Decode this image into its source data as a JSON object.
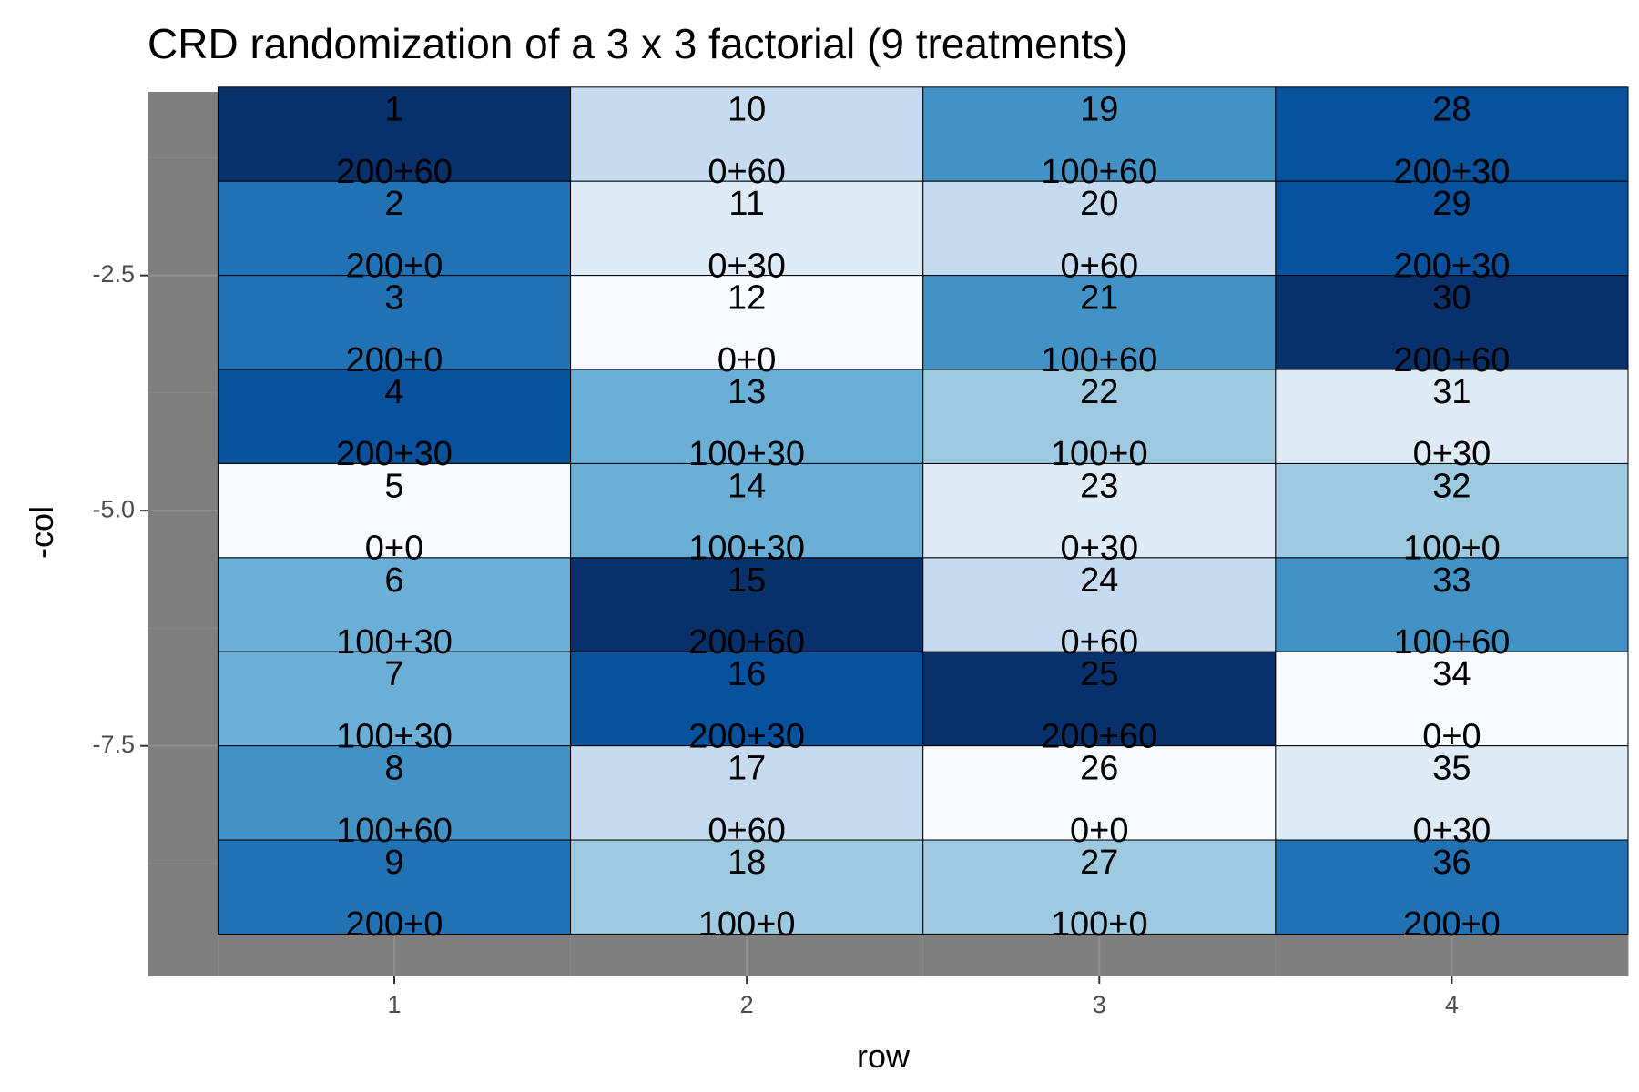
{
  "chart_data": {
    "type": "heatmap",
    "title": "CRD randomization of a 3 x 3 factorial (9 treatments)",
    "xlabel": "row",
    "ylabel": "-col",
    "x_ticks": [
      "1",
      "2",
      "3",
      "4"
    ],
    "y_ticks": [
      -2.5,
      -5.0,
      -7.5
    ],
    "y_tick_labels": [
      "-2.5",
      "-5.0",
      "-7.5"
    ],
    "x_range": [
      0.3,
      4.5
    ],
    "y_range": [
      -9.95,
      -0.55
    ],
    "grid": true,
    "panel_background": "#7f7f7f",
    "treatment_colors": {
      "0+0": "#f7fbff",
      "0+30": "#deebf7",
      "0+60": "#c6dbef",
      "100+0": "#9ecae1",
      "100+30": "#6baed6",
      "100+60": "#4292c6",
      "200+0": "#2171b5",
      "200+30": "#08519c",
      "200+60": "#08306b"
    },
    "cells": [
      {
        "row": 1,
        "col": 1,
        "plot": "1",
        "treatment": "200+60"
      },
      {
        "row": 1,
        "col": 2,
        "plot": "2",
        "treatment": "200+0"
      },
      {
        "row": 1,
        "col": 3,
        "plot": "3",
        "treatment": "200+0"
      },
      {
        "row": 1,
        "col": 4,
        "plot": "4",
        "treatment": "200+30"
      },
      {
        "row": 1,
        "col": 5,
        "plot": "5",
        "treatment": "0+0"
      },
      {
        "row": 1,
        "col": 6,
        "plot": "6",
        "treatment": "100+30"
      },
      {
        "row": 1,
        "col": 7,
        "plot": "7",
        "treatment": "100+30"
      },
      {
        "row": 1,
        "col": 8,
        "plot": "8",
        "treatment": "100+60"
      },
      {
        "row": 1,
        "col": 9,
        "plot": "9",
        "treatment": "200+0"
      },
      {
        "row": 2,
        "col": 1,
        "plot": "10",
        "treatment": "0+60"
      },
      {
        "row": 2,
        "col": 2,
        "plot": "11",
        "treatment": "0+30"
      },
      {
        "row": 2,
        "col": 3,
        "plot": "12",
        "treatment": "0+0"
      },
      {
        "row": 2,
        "col": 4,
        "plot": "13",
        "treatment": "100+30"
      },
      {
        "row": 2,
        "col": 5,
        "plot": "14",
        "treatment": "100+30"
      },
      {
        "row": 2,
        "col": 6,
        "plot": "15",
        "treatment": "200+60"
      },
      {
        "row": 2,
        "col": 7,
        "plot": "16",
        "treatment": "200+30"
      },
      {
        "row": 2,
        "col": 8,
        "plot": "17",
        "treatment": "0+60"
      },
      {
        "row": 2,
        "col": 9,
        "plot": "18",
        "treatment": "100+0"
      },
      {
        "row": 3,
        "col": 1,
        "plot": "19",
        "treatment": "100+60"
      },
      {
        "row": 3,
        "col": 2,
        "plot": "20",
        "treatment": "0+60"
      },
      {
        "row": 3,
        "col": 3,
        "plot": "21",
        "treatment": "100+60"
      },
      {
        "row": 3,
        "col": 4,
        "plot": "22",
        "treatment": "100+0"
      },
      {
        "row": 3,
        "col": 5,
        "plot": "23",
        "treatment": "0+30"
      },
      {
        "row": 3,
        "col": 6,
        "plot": "24",
        "treatment": "0+60"
      },
      {
        "row": 3,
        "col": 7,
        "plot": "25",
        "treatment": "200+60"
      },
      {
        "row": 3,
        "col": 8,
        "plot": "26",
        "treatment": "0+0"
      },
      {
        "row": 3,
        "col": 9,
        "plot": "27",
        "treatment": "100+0"
      },
      {
        "row": 4,
        "col": 1,
        "plot": "28",
        "treatment": "200+30"
      },
      {
        "row": 4,
        "col": 2,
        "plot": "29",
        "treatment": "200+30"
      },
      {
        "row": 4,
        "col": 3,
        "plot": "30",
        "treatment": "200+60"
      },
      {
        "row": 4,
        "col": 4,
        "plot": "31",
        "treatment": "0+30"
      },
      {
        "row": 4,
        "col": 5,
        "plot": "32",
        "treatment": "100+0"
      },
      {
        "row": 4,
        "col": 6,
        "plot": "33",
        "treatment": "100+60"
      },
      {
        "row": 4,
        "col": 7,
        "plot": "34",
        "treatment": "0+0"
      },
      {
        "row": 4,
        "col": 8,
        "plot": "35",
        "treatment": "0+30"
      },
      {
        "row": 4,
        "col": 9,
        "plot": "36",
        "treatment": "200+0"
      }
    ]
  }
}
